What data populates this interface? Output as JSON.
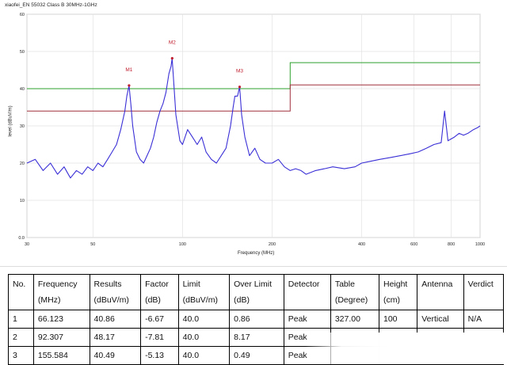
{
  "chart_data": {
    "type": "line",
    "title": "xiaofei_EN 55032 Class B 30MHz-1GHz",
    "xlabel": "Frequency (MHz)",
    "ylabel": "level (dBuV/m)",
    "x_scale": "log",
    "xlim": [
      30,
      1000
    ],
    "ylim": [
      0,
      60
    ],
    "x_ticks": [
      "30",
      "50",
      "100",
      "200",
      "400",
      "600",
      "800",
      "1000"
    ],
    "x_tick_values": [
      30,
      50,
      100,
      200,
      400,
      600,
      800,
      1000
    ],
    "y_ticks": [
      "0.0",
      "10",
      "20",
      "30",
      "40",
      "50",
      "60"
    ],
    "y_tick_values": [
      0,
      10,
      20,
      30,
      40,
      50,
      60
    ],
    "grid": true,
    "limit_lines": [
      {
        "color": "#2ca02c",
        "points": [
          [
            30,
            40
          ],
          [
            230,
            40
          ],
          [
            230,
            47
          ],
          [
            1000,
            47
          ]
        ]
      },
      {
        "color": "#a0303c",
        "points": [
          [
            30,
            34
          ],
          [
            230,
            34
          ],
          [
            230,
            41
          ],
          [
            1000,
            41
          ]
        ]
      }
    ],
    "series": [
      {
        "color": "#3a2fd6",
        "x": [
          30,
          32,
          34,
          36,
          38,
          40,
          42,
          44,
          46,
          48,
          50,
          52,
          54,
          56,
          58,
          60,
          62,
          64,
          65,
          66.1,
          67,
          68,
          70,
          72,
          74,
          76,
          78,
          80,
          82,
          84,
          86,
          88,
          90,
          91.5,
          92.3,
          93,
          95,
          98,
          100,
          104,
          108,
          112,
          116,
          120,
          125,
          130,
          135,
          140,
          145,
          148,
          150,
          153,
          155.6,
          158,
          162,
          168,
          175,
          182,
          190,
          200,
          210,
          220,
          230,
          240,
          250,
          260,
          280,
          300,
          320,
          350,
          380,
          400,
          430,
          460,
          500,
          540,
          580,
          620,
          660,
          700,
          740,
          760,
          780,
          800,
          820,
          850,
          880,
          910,
          950,
          980,
          1000
        ],
        "y": [
          20,
          21,
          18,
          20,
          17,
          19,
          16,
          18,
          17,
          19,
          18,
          20,
          19,
          21,
          23,
          25,
          29,
          34,
          38,
          40.86,
          36,
          30,
          23,
          21,
          20,
          22,
          24,
          27,
          31,
          34,
          36,
          39,
          44,
          46,
          48.17,
          44,
          33,
          26,
          25,
          29,
          27,
          25,
          27,
          23,
          21,
          20,
          22,
          24,
          30,
          35,
          38,
          38,
          40.49,
          33,
          27,
          22,
          24,
          21,
          20,
          20,
          21,
          19,
          18,
          18.5,
          18,
          17,
          18,
          18.5,
          19,
          18.5,
          19,
          20,
          20.5,
          21,
          21.5,
          22,
          22.5,
          23,
          24,
          25,
          25.5,
          34,
          26,
          26.5,
          27,
          28,
          27.5,
          28,
          29,
          29.5,
          30
        ]
      }
    ],
    "markers": [
      {
        "label": "M1",
        "x": 66.123,
        "y": 40.86
      },
      {
        "label": "M2",
        "x": 92.307,
        "y": 48.17
      },
      {
        "label": "M3",
        "x": 155.584,
        "y": 40.49
      }
    ]
  },
  "table": {
    "headers": [
      {
        "line1": "No.",
        "line2": ""
      },
      {
        "line1": "Frequency",
        "line2": "(MHz)"
      },
      {
        "line1": "Results",
        "line2": "(dBuV/m)"
      },
      {
        "line1": "Factor",
        "line2": "(dB)"
      },
      {
        "line1": "Limit",
        "line2": "(dBuV/m)"
      },
      {
        "line1": "Over Limit",
        "line2": "(dB)"
      },
      {
        "line1": "Detector",
        "line2": ""
      },
      {
        "line1": "Table",
        "line2": "(Degree)"
      },
      {
        "line1": "Height",
        "line2": "(cm)"
      },
      {
        "line1": "Antenna",
        "line2": ""
      },
      {
        "line1": "Verdict",
        "line2": ""
      }
    ],
    "rows": [
      [
        "1",
        "66.123",
        "40.86",
        "-6.67",
        "40.0",
        "0.86",
        "Peak",
        "327.00",
        "100",
        "Vertical",
        "N/A"
      ],
      [
        "2",
        "92.307",
        "48.17",
        "-7.81",
        "40.0",
        "8.17",
        "Peak",
        "",
        "",
        "",
        ""
      ],
      [
        "3",
        "155.584",
        "40.49",
        "-5.13",
        "40.0",
        "0.49",
        "Peak",
        "",
        "",
        "",
        ""
      ]
    ]
  }
}
